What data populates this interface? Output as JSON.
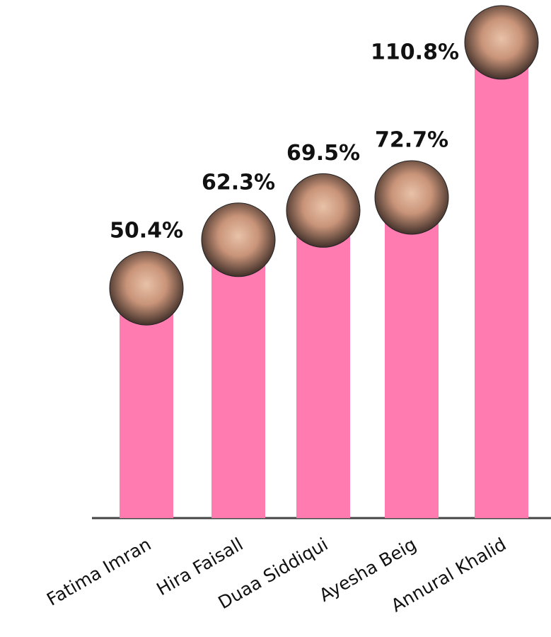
{
  "chart_data": {
    "type": "bar",
    "categories": [
      "Fatima Imran",
      "Hira Faisall",
      "Duaa Siddiqui",
      "Ayesha Beig",
      "Annural Khalid"
    ],
    "values": [
      50.4,
      62.3,
      69.5,
      72.7,
      110.8
    ],
    "value_labels": [
      "50.4%",
      "62.3%",
      "69.5%",
      "72.7%",
      "110.8%"
    ],
    "color": "#ff7bb0"
  }
}
